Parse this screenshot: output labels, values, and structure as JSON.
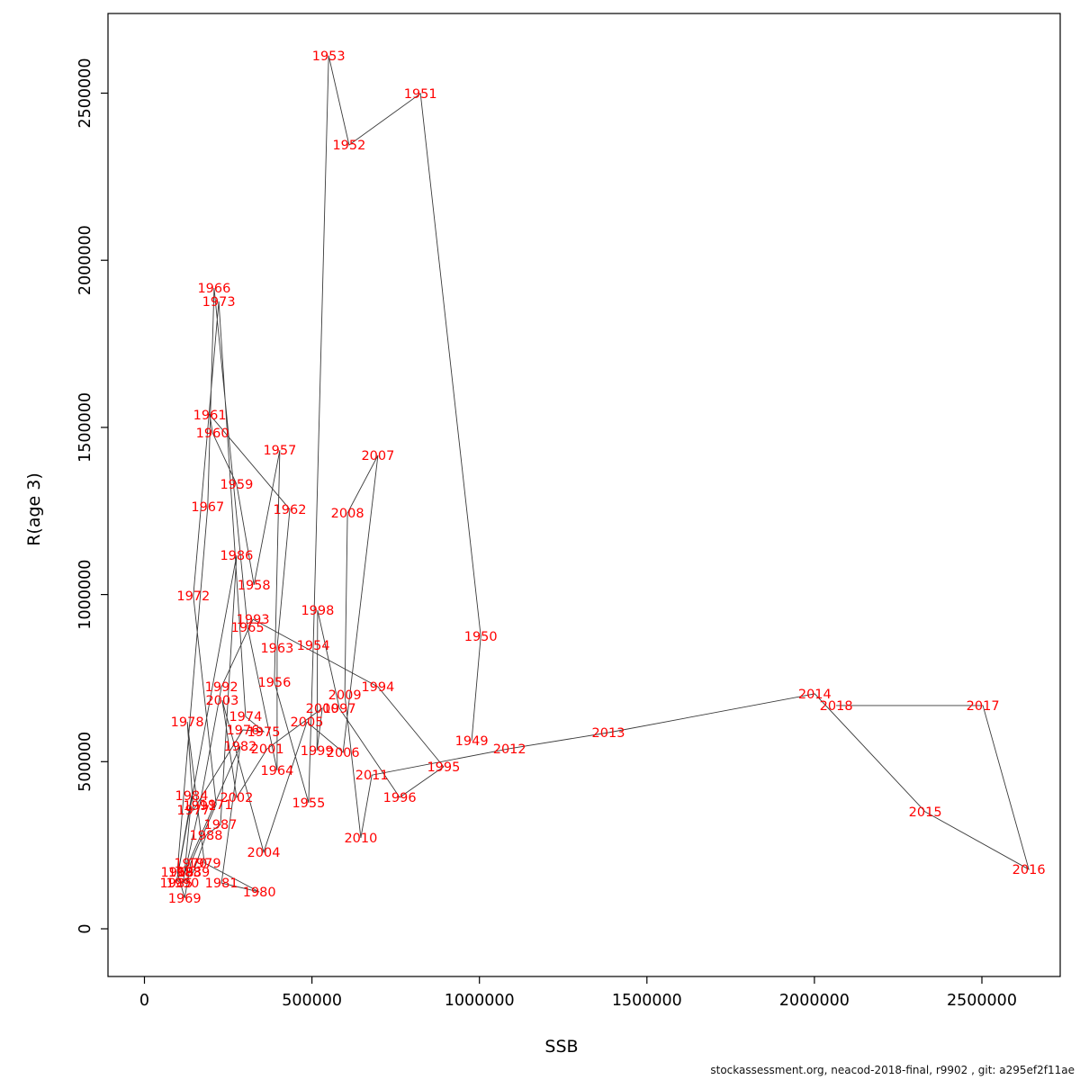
{
  "footer": {
    "text": "stockassessment.org, neacod-2018-final, r9902 , git: a295ef2f11ae"
  },
  "chart_data": {
    "type": "scatter",
    "title": "",
    "xlabel": "SSB",
    "ylabel": "R(age 3)",
    "xlim": [
      0,
      2700000
    ],
    "ylim": [
      0,
      2700000
    ],
    "x_ticks": [
      0,
      500000,
      1000000,
      1500000,
      2000000,
      2500000
    ],
    "y_ticks": [
      0,
      500000,
      1000000,
      1500000,
      2000000,
      2500000
    ],
    "grid": "off",
    "legend": "none",
    "point_style": "year-text-labels",
    "label_color": "#ff0000",
    "line_color": "#3a3a3a",
    "axis_color": "#000000",
    "series": [
      {
        "name": "SSB-recruitment trajectory (connected in year order)",
        "points": [
          {
            "year": 1949,
            "ssb": 977000,
            "r": 563000
          },
          {
            "year": 1950,
            "ssb": 1004000,
            "r": 875000
          },
          {
            "year": 1951,
            "ssb": 824000,
            "r": 2499000
          },
          {
            "year": 1952,
            "ssb": 611000,
            "r": 2345000
          },
          {
            "year": 1953,
            "ssb": 550000,
            "r": 2612000
          },
          {
            "year": 1954,
            "ssb": 504000,
            "r": 848000
          },
          {
            "year": 1955,
            "ssb": 490000,
            "r": 377000
          },
          {
            "year": 1956,
            "ssb": 388000,
            "r": 738000
          },
          {
            "year": 1957,
            "ssb": 404000,
            "r": 1432000
          },
          {
            "year": 1958,
            "ssb": 327000,
            "r": 1029000
          },
          {
            "year": 1959,
            "ssb": 275000,
            "r": 1330000
          },
          {
            "year": 1960,
            "ssb": 203000,
            "r": 1484000
          },
          {
            "year": 1961,
            "ssb": 195000,
            "r": 1538000
          },
          {
            "year": 1962,
            "ssb": 434000,
            "r": 1255000
          },
          {
            "year": 1963,
            "ssb": 396000,
            "r": 840000
          },
          {
            "year": 1964,
            "ssb": 396000,
            "r": 474000
          },
          {
            "year": 1965,
            "ssb": 308000,
            "r": 902000
          },
          {
            "year": 1966,
            "ssb": 208000,
            "r": 1917000
          },
          {
            "year": 1967,
            "ssb": 189000,
            "r": 1263000
          },
          {
            "year": 1968,
            "ssb": 98000,
            "r": 170000
          },
          {
            "year": 1969,
            "ssb": 120000,
            "r": 92000
          },
          {
            "year": 1970,
            "ssb": 138000,
            "r": 197000
          },
          {
            "year": 1971,
            "ssb": 214000,
            "r": 372000
          },
          {
            "year": 1972,
            "ssb": 146000,
            "r": 996000
          },
          {
            "year": 1973,
            "ssb": 222000,
            "r": 1877000
          },
          {
            "year": 1974,
            "ssb": 302000,
            "r": 635000
          },
          {
            "year": 1975,
            "ssb": 356000,
            "r": 590000
          },
          {
            "year": 1976,
            "ssb": 294000,
            "r": 595000
          },
          {
            "year": 1977,
            "ssb": 146000,
            "r": 355000
          },
          {
            "year": 1978,
            "ssb": 128000,
            "r": 619000
          },
          {
            "year": 1979,
            "ssb": 179000,
            "r": 197000
          },
          {
            "year": 1980,
            "ssb": 343000,
            "r": 110000
          },
          {
            "year": 1981,
            "ssb": 230000,
            "r": 137000
          },
          {
            "year": 1982,
            "ssb": 286000,
            "r": 547000
          },
          {
            "year": 1983,
            "ssb": 120000,
            "r": 170000
          },
          {
            "year": 1984,
            "ssb": 141000,
            "r": 399000
          },
          {
            "year": 1985,
            "ssb": 95000,
            "r": 137000
          },
          {
            "year": 1986,
            "ssb": 275000,
            "r": 1117000
          },
          {
            "year": 1987,
            "ssb": 227000,
            "r": 312000
          },
          {
            "year": 1988,
            "ssb": 184000,
            "r": 280000
          },
          {
            "year": 1989,
            "ssb": 146000,
            "r": 170000
          },
          {
            "year": 1990,
            "ssb": 114000,
            "r": 137000
          },
          {
            "year": 1991,
            "ssb": 165000,
            "r": 369000
          },
          {
            "year": 1992,
            "ssb": 230000,
            "r": 724000
          },
          {
            "year": 1993,
            "ssb": 324000,
            "r": 926000
          },
          {
            "year": 1994,
            "ssb": 697000,
            "r": 724000
          },
          {
            "year": 1995,
            "ssb": 893000,
            "r": 485000
          },
          {
            "year": 1996,
            "ssb": 762000,
            "r": 393000
          },
          {
            "year": 1997,
            "ssb": 582000,
            "r": 660000
          },
          {
            "year": 1998,
            "ssb": 517000,
            "r": 953000
          },
          {
            "year": 1999,
            "ssb": 515000,
            "r": 533000
          },
          {
            "year": 2000,
            "ssb": 531000,
            "r": 660000
          },
          {
            "year": 2001,
            "ssb": 367000,
            "r": 539000
          },
          {
            "year": 2002,
            "ssb": 275000,
            "r": 393000
          },
          {
            "year": 2003,
            "ssb": 232000,
            "r": 684000
          },
          {
            "year": 2004,
            "ssb": 356000,
            "r": 229000
          },
          {
            "year": 2005,
            "ssb": 485000,
            "r": 619000
          },
          {
            "year": 2006,
            "ssb": 593000,
            "r": 528000
          },
          {
            "year": 2007,
            "ssb": 697000,
            "r": 1416000
          },
          {
            "year": 2008,
            "ssb": 606000,
            "r": 1244000
          },
          {
            "year": 2009,
            "ssb": 598000,
            "r": 700000
          },
          {
            "year": 2010,
            "ssb": 646000,
            "r": 272000
          },
          {
            "year": 2011,
            "ssb": 679000,
            "r": 460000
          },
          {
            "year": 2012,
            "ssb": 1090000,
            "r": 539000
          },
          {
            "year": 2013,
            "ssb": 1385000,
            "r": 587000
          },
          {
            "year": 2014,
            "ssb": 2001000,
            "r": 703000
          },
          {
            "year": 2015,
            "ssb": 2331000,
            "r": 350000
          },
          {
            "year": 2016,
            "ssb": 2640000,
            "r": 178000
          },
          {
            "year": 2017,
            "ssb": 2503000,
            "r": 668000
          },
          {
            "year": 2018,
            "ssb": 2065000,
            "r": 668000
          }
        ]
      }
    ]
  }
}
